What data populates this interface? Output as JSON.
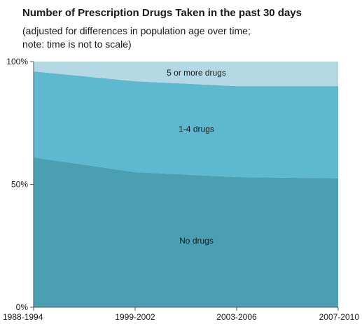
{
  "chart_data": {
    "type": "area",
    "stacked": true,
    "normalized": true,
    "title": "Number of Prescription Drugs Taken in the past 30 days",
    "subtitle_lines": [
      "(adjusted for differences in population age over time;",
      "note: time is not to scale)"
    ],
    "categories": [
      "1988-1994",
      "1999-2002",
      "2003-2006",
      "2007-2010"
    ],
    "series": [
      {
        "name": "No drugs",
        "values": [
          61,
          55,
          53,
          52.5
        ],
        "color": "#4b9fb3"
      },
      {
        "name": "1-4 drugs",
        "values": [
          35,
          37,
          37,
          37.5
        ],
        "color": "#5db8d0"
      },
      {
        "name": "5 or more drugs",
        "values": [
          4,
          8,
          10,
          10
        ],
        "color": "#b5d9e4"
      }
    ],
    "ylim": [
      0,
      100
    ],
    "y_ticks": [
      {
        "value": 0,
        "label": "0%"
      },
      {
        "value": 50,
        "label": "50%"
      },
      {
        "value": 100,
        "label": "100%"
      }
    ],
    "xlabel": "",
    "ylabel": "",
    "grid": false,
    "legend": "none (labels placed inside areas)"
  }
}
